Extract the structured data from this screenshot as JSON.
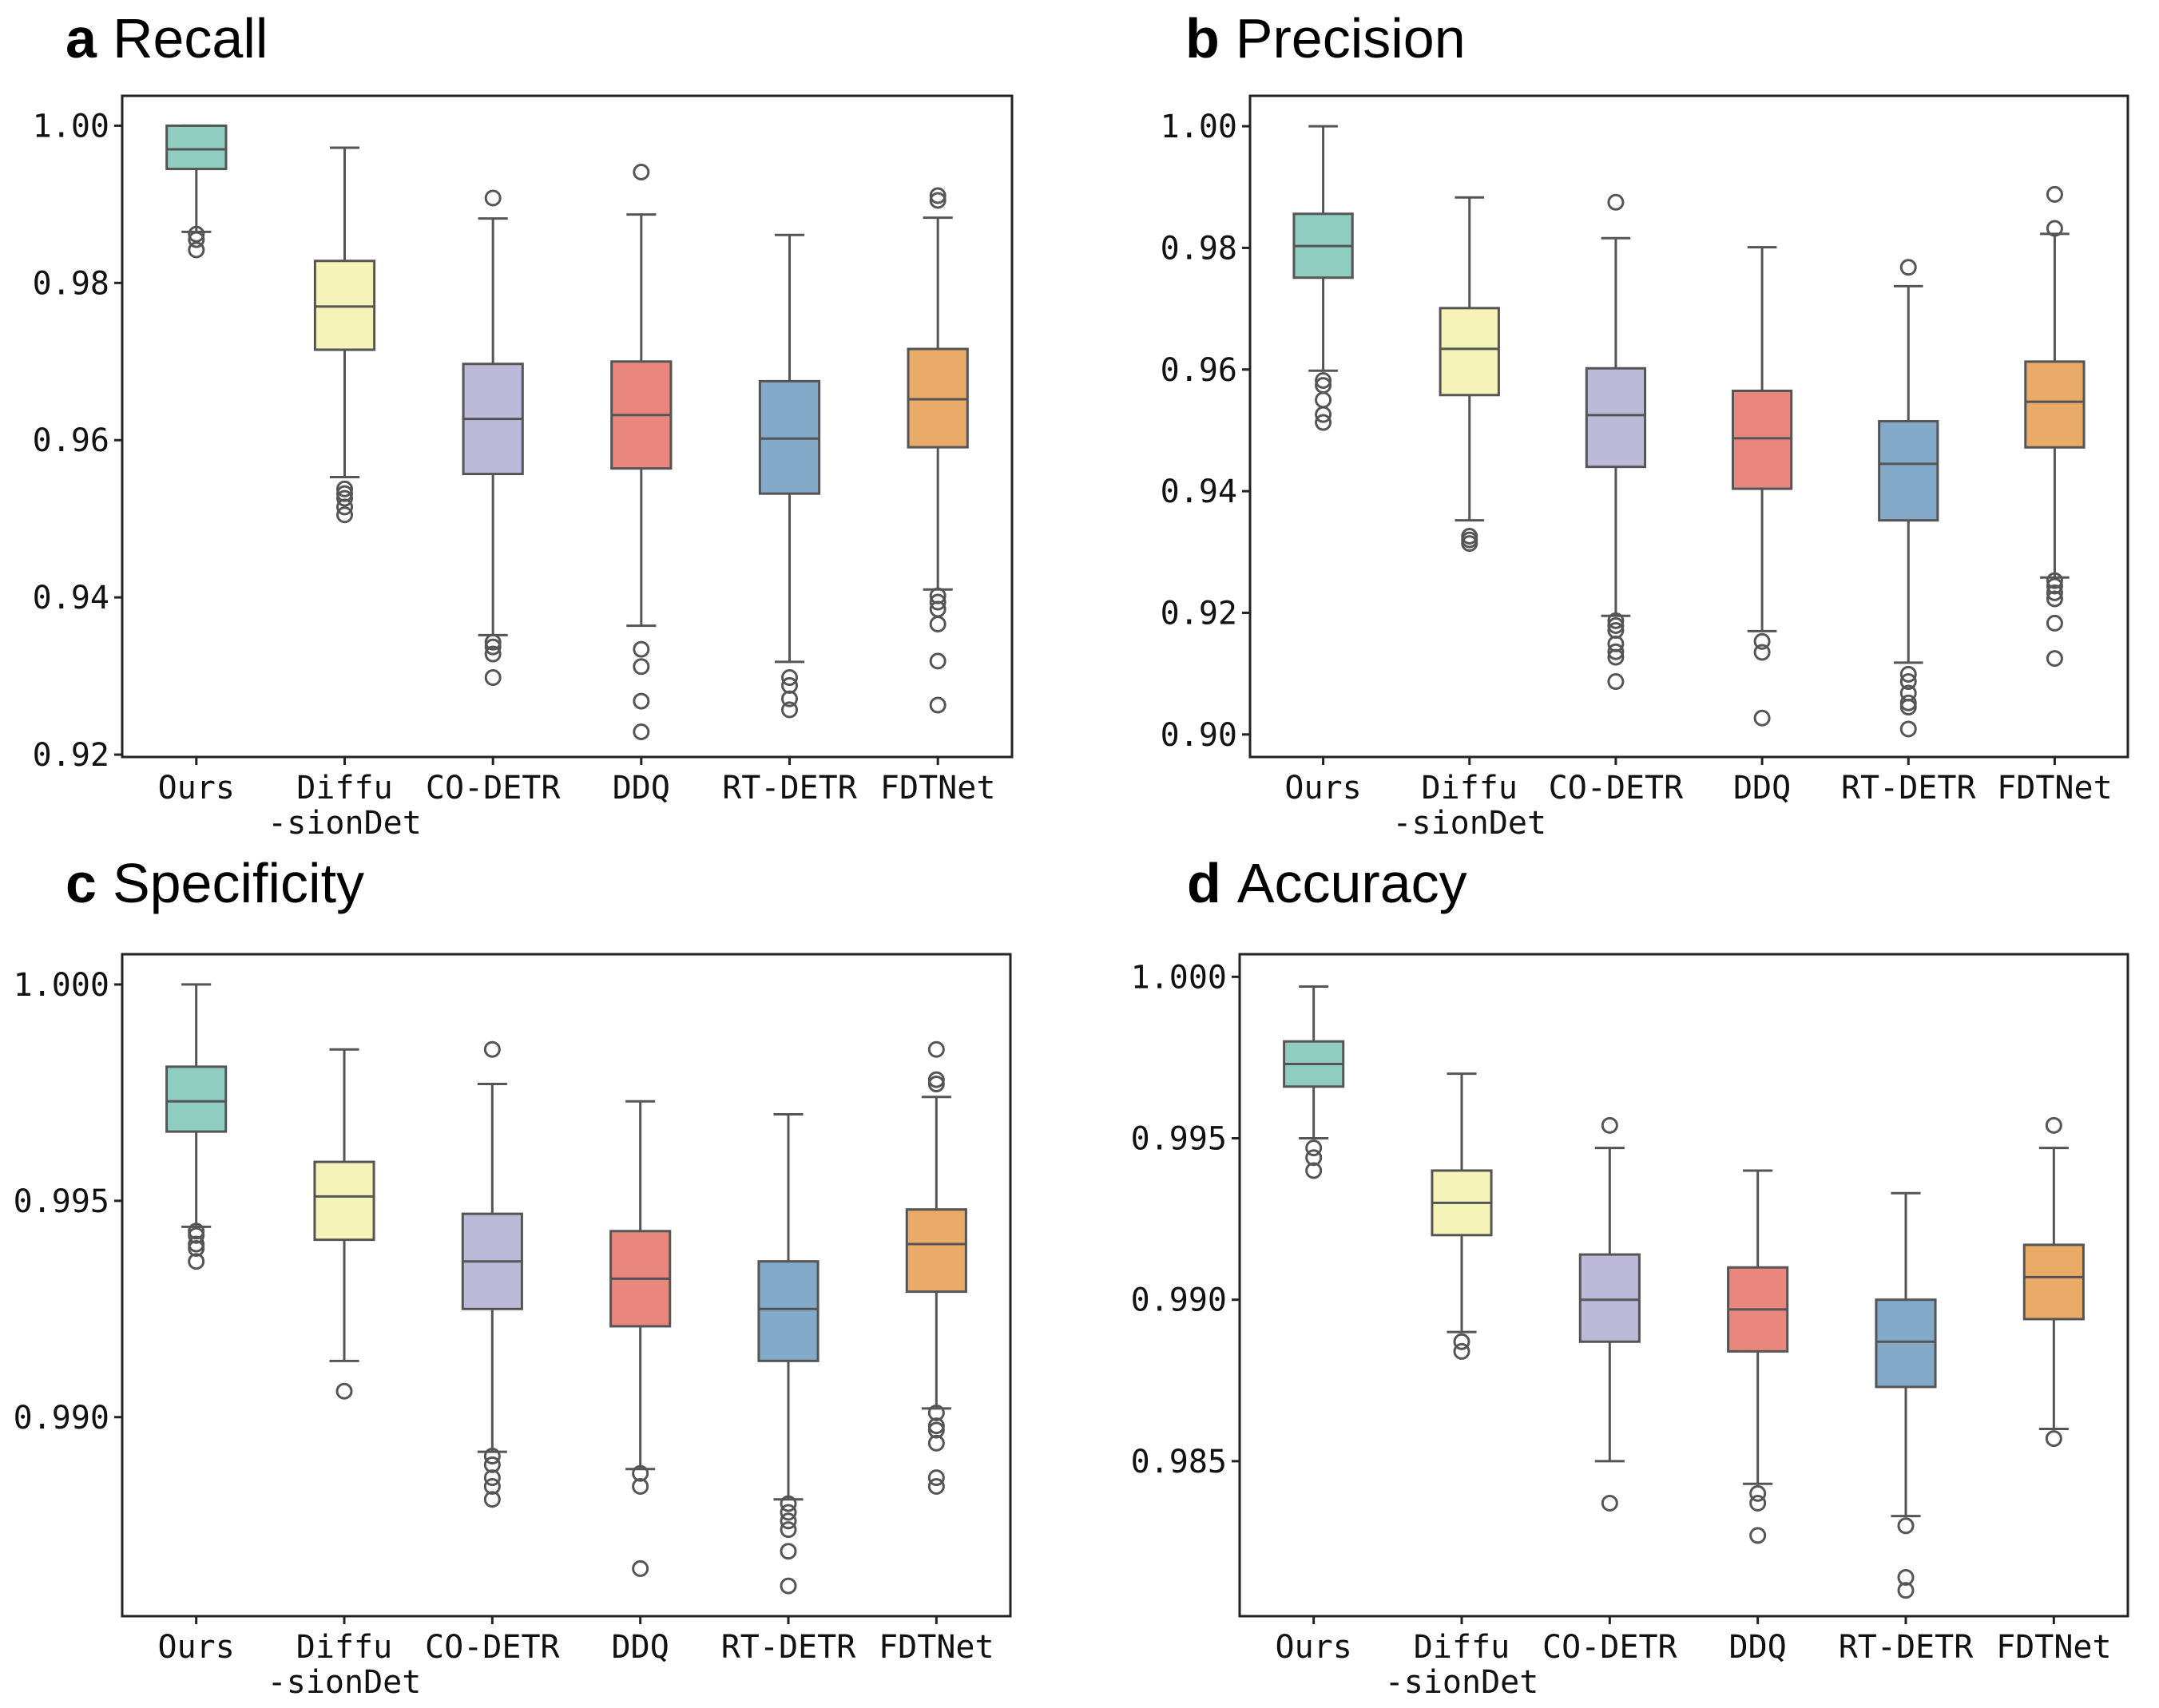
{
  "colors": {
    "Ours": "#8ecdc0",
    "Diffu-sionDet": "#f6f3b8",
    "CO-DETR": "#bdb9d8",
    "DDQ": "#e9877f",
    "RT-DETR": "#83aac9",
    "FDTNet": "#eaaa68"
  },
  "chart_data": [
    {
      "type": "box",
      "panel": "a",
      "title": "Recall",
      "categories": [
        [
          "Ours"
        ],
        [
          "Diffu",
          "-sionDet"
        ],
        [
          "CO-DETR"
        ],
        [
          "DDQ"
        ],
        [
          "RT-DETR"
        ],
        [
          "FDTNet"
        ]
      ],
      "ylim": [
        0.9197,
        1.0038
      ],
      "yticks": [
        0.92,
        0.94,
        0.96,
        0.98,
        1.0
      ],
      "ytick_labels": [
        "0.92",
        "0.94",
        "0.96",
        "0.98",
        "1.00"
      ],
      "series": [
        {
          "name": "Ours",
          "whislo": 0.9865,
          "q1": 0.9945,
          "med": 0.997,
          "q3": 1.0,
          "whishi": 1.0,
          "fliers": [
            0.9862,
            0.9855,
            0.9842
          ]
        },
        {
          "name": "Diffu-sionDet",
          "whislo": 0.9553,
          "q1": 0.9715,
          "med": 0.977,
          "q3": 0.9828,
          "whishi": 0.9972,
          "fliers": [
            0.9538,
            0.9532,
            0.9526,
            0.9515,
            0.9505
          ]
        },
        {
          "name": "CO-DETR",
          "whislo": 0.9352,
          "q1": 0.9557,
          "med": 0.9627,
          "q3": 0.9697,
          "whishi": 0.9882,
          "fliers": [
            0.9908,
            0.9343,
            0.9337,
            0.9328,
            0.9298
          ]
        },
        {
          "name": "DDQ",
          "whislo": 0.9364,
          "q1": 0.9564,
          "med": 0.9632,
          "q3": 0.97,
          "whishi": 0.9887,
          "fliers": [
            0.9941,
            0.9334,
            0.9312,
            0.9268,
            0.9229
          ]
        },
        {
          "name": "RT-DETR",
          "whislo": 0.9318,
          "q1": 0.9532,
          "med": 0.9602,
          "q3": 0.9675,
          "whishi": 0.9861,
          "fliers": [
            0.9298,
            0.9288,
            0.9271,
            0.9257
          ]
        },
        {
          "name": "FDTNet",
          "whislo": 0.941,
          "q1": 0.9591,
          "med": 0.9652,
          "q3": 0.9716,
          "whishi": 0.9883,
          "fliers": [
            0.9911,
            0.9905,
            0.9402,
            0.9394,
            0.9385,
            0.9366,
            0.9319,
            0.9263
          ]
        }
      ]
    },
    {
      "type": "box",
      "panel": "b",
      "title": "Precision",
      "categories": [
        [
          "Ours"
        ],
        [
          "Diffu",
          "-sionDet"
        ],
        [
          "CO-DETR"
        ],
        [
          "DDQ"
        ],
        [
          "RT-DETR"
        ],
        [
          "FDTNet"
        ]
      ],
      "ylim": [
        0.8963,
        1.005
      ],
      "yticks": [
        0.9,
        0.92,
        0.94,
        0.96,
        0.98,
        1.0
      ],
      "ytick_labels": [
        "0.90",
        "0.92",
        "0.94",
        "0.96",
        "0.98",
        "1.00"
      ],
      "series": [
        {
          "name": "Ours",
          "whislo": 0.9598,
          "q1": 0.9751,
          "med": 0.9803,
          "q3": 0.9856,
          "whishi": 1.0,
          "fliers": [
            0.9582,
            0.9574,
            0.955,
            0.9526,
            0.9513
          ]
        },
        {
          "name": "Diffu-sionDet",
          "whislo": 0.9352,
          "q1": 0.9558,
          "med": 0.9634,
          "q3": 0.9701,
          "whishi": 0.9883,
          "fliers": [
            0.9326,
            0.932,
            0.9314
          ]
        },
        {
          "name": "CO-DETR",
          "whislo": 0.9195,
          "q1": 0.944,
          "med": 0.9525,
          "q3": 0.9602,
          "whishi": 0.9816,
          "fliers": [
            0.9875,
            0.9187,
            0.9179,
            0.9171,
            0.9149,
            0.9136,
            0.9127,
            0.9087
          ]
        },
        {
          "name": "DDQ",
          "whislo": 0.917,
          "q1": 0.9404,
          "med": 0.9487,
          "q3": 0.9565,
          "whishi": 0.9801,
          "fliers": [
            0.9153,
            0.9135,
            0.9027
          ]
        },
        {
          "name": "RT-DETR",
          "whislo": 0.9118,
          "q1": 0.9352,
          "med": 0.9445,
          "q3": 0.9515,
          "whishi": 0.9737,
          "fliers": [
            0.9768,
            0.9099,
            0.9087,
            0.9068,
            0.9052,
            0.9045,
            0.9009
          ]
        },
        {
          "name": "FDTNet",
          "whislo": 0.9258,
          "q1": 0.9472,
          "med": 0.9547,
          "q3": 0.9613,
          "whishi": 0.9823,
          "fliers": [
            0.9888,
            0.9832,
            0.9253,
            0.9244,
            0.9233,
            0.9223,
            0.9183,
            0.9125
          ]
        }
      ]
    },
    {
      "type": "box",
      "panel": "c",
      "title": "Specificity",
      "categories": [
        [
          "Ours"
        ],
        [
          "Diffu",
          "-sionDet"
        ],
        [
          "CO-DETR"
        ],
        [
          "DDQ"
        ],
        [
          "RT-DETR"
        ],
        [
          "FDTNet"
        ]
      ],
      "ylim": [
        0.9854,
        1.0007
      ],
      "yticks": [
        0.99,
        0.995,
        1.0
      ],
      "ytick_labels": [
        "0.990",
        "0.995",
        "1.000"
      ],
      "series": [
        {
          "name": "Ours",
          "whislo": 0.9944,
          "q1": 0.9966,
          "med": 0.9973,
          "q3": 0.9981,
          "whishi": 1.0,
          "fliers": [
            0.9943,
            0.9942,
            0.994,
            0.9939,
            0.9936
          ]
        },
        {
          "name": "Diffu-sionDet",
          "whislo": 0.9913,
          "q1": 0.9941,
          "med": 0.9951,
          "q3": 0.9959,
          "whishi": 0.9985,
          "fliers": [
            0.9906
          ]
        },
        {
          "name": "CO-DETR",
          "whislo": 0.9892,
          "q1": 0.9925,
          "med": 0.9936,
          "q3": 0.9947,
          "whishi": 0.9977,
          "fliers": [
            0.9985,
            0.9891,
            0.9889,
            0.9886,
            0.9884,
            0.9881
          ]
        },
        {
          "name": "DDQ",
          "whislo": 0.9888,
          "q1": 0.9921,
          "med": 0.9932,
          "q3": 0.9943,
          "whishi": 0.9973,
          "fliers": [
            0.9887,
            0.9884,
            0.9865
          ]
        },
        {
          "name": "RT-DETR",
          "whislo": 0.9881,
          "q1": 0.9913,
          "med": 0.9925,
          "q3": 0.9936,
          "whishi": 0.997,
          "fliers": [
            0.988,
            0.9878,
            0.9876,
            0.9874,
            0.9869,
            0.9861
          ]
        },
        {
          "name": "FDTNet",
          "whislo": 0.9902,
          "q1": 0.9929,
          "med": 0.994,
          "q3": 0.9948,
          "whishi": 0.9974,
          "fliers": [
            0.9985,
            0.9978,
            0.9977,
            0.9901,
            0.9898,
            0.9897,
            0.9894,
            0.9886,
            0.9884
          ]
        }
      ]
    },
    {
      "type": "box",
      "panel": "d",
      "title": "Accuracy",
      "categories": [
        [
          "Ours"
        ],
        [
          "Diffu",
          "-sionDet"
        ],
        [
          "CO-DETR"
        ],
        [
          "DDQ"
        ],
        [
          "RT-DETR"
        ],
        [
          "FDTNet"
        ]
      ],
      "ylim": [
        0.9802,
        1.0007
      ],
      "yticks": [
        0.985,
        0.99,
        0.995,
        1.0
      ],
      "ytick_labels": [
        "0.985",
        "0.990",
        "0.995",
        "1.000"
      ],
      "series": [
        {
          "name": "Ours",
          "whislo": 0.995,
          "q1": 0.9966,
          "med": 0.9973,
          "q3": 0.998,
          "whishi": 0.9997,
          "fliers": [
            0.9947,
            0.9944,
            0.994
          ]
        },
        {
          "name": "Diffu-sionDet",
          "whislo": 0.989,
          "q1": 0.992,
          "med": 0.993,
          "q3": 0.994,
          "whishi": 0.997,
          "fliers": [
            0.9887,
            0.9884
          ]
        },
        {
          "name": "CO-DETR",
          "whislo": 0.985,
          "q1": 0.9887,
          "med": 0.99,
          "q3": 0.9914,
          "whishi": 0.9947,
          "fliers": [
            0.9954,
            0.9837
          ]
        },
        {
          "name": "DDQ",
          "whislo": 0.9843,
          "q1": 0.9884,
          "med": 0.9897,
          "q3": 0.991,
          "whishi": 0.994,
          "fliers": [
            0.984,
            0.9837,
            0.9827
          ]
        },
        {
          "name": "RT-DETR",
          "whislo": 0.9833,
          "q1": 0.9873,
          "med": 0.9887,
          "q3": 0.99,
          "whishi": 0.9933,
          "fliers": [
            0.983,
            0.9814,
            0.981
          ]
        },
        {
          "name": "FDTNet",
          "whislo": 0.986,
          "q1": 0.9894,
          "med": 0.9907,
          "q3": 0.9917,
          "whishi": 0.9947,
          "fliers": [
            0.9954,
            0.9857
          ]
        }
      ]
    }
  ]
}
